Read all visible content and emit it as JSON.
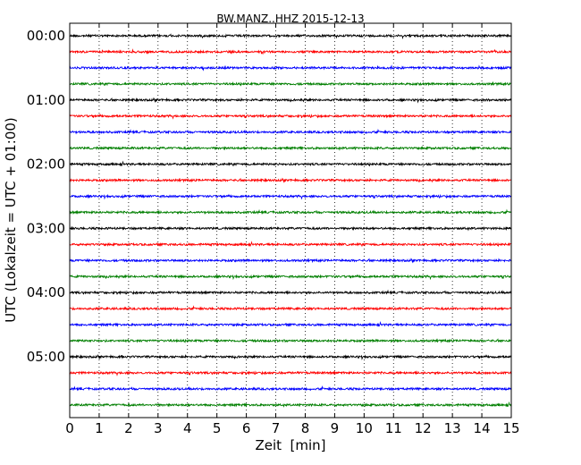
{
  "chart_data": {
    "type": "line",
    "title": "BW.MANZ..HHZ 2015-12-13",
    "xlabel": "Zeit  [min]",
    "ylabel": "UTC (Lokalzeit = UTC + 01:00)",
    "xlim": [
      0,
      15
    ],
    "x_ticks": [
      "0",
      "1",
      "2",
      "3",
      "4",
      "5",
      "6",
      "7",
      "8",
      "9",
      "10",
      "11",
      "12",
      "13",
      "14",
      "15"
    ],
    "y_tick_labels": [
      "00:00",
      "01:00",
      "02:00",
      "03:00",
      "04:00",
      "05:00"
    ],
    "grid": "vertical dotted lines at each minute",
    "trace_interval_minutes": 15,
    "series_colors": [
      "#000000",
      "#ff0000",
      "#0000ff",
      "#007f00"
    ],
    "series": [
      {
        "start": "00:00",
        "color": "#000000"
      },
      {
        "start": "00:15",
        "color": "#ff0000"
      },
      {
        "start": "00:30",
        "color": "#0000ff"
      },
      {
        "start": "00:45",
        "color": "#007f00"
      },
      {
        "start": "01:00",
        "color": "#000000"
      },
      {
        "start": "01:15",
        "color": "#ff0000"
      },
      {
        "start": "01:30",
        "color": "#0000ff"
      },
      {
        "start": "01:45",
        "color": "#007f00"
      },
      {
        "start": "02:00",
        "color": "#000000"
      },
      {
        "start": "02:15",
        "color": "#ff0000"
      },
      {
        "start": "02:30",
        "color": "#0000ff"
      },
      {
        "start": "02:45",
        "color": "#007f00"
      },
      {
        "start": "03:00",
        "color": "#000000"
      },
      {
        "start": "03:15",
        "color": "#ff0000"
      },
      {
        "start": "03:30",
        "color": "#0000ff"
      },
      {
        "start": "03:45",
        "color": "#007f00"
      },
      {
        "start": "04:00",
        "color": "#000000"
      },
      {
        "start": "04:15",
        "color": "#ff0000"
      },
      {
        "start": "04:30",
        "color": "#0000ff"
      },
      {
        "start": "04:45",
        "color": "#007f00"
      },
      {
        "start": "05:00",
        "color": "#000000"
      },
      {
        "start": "05:15",
        "color": "#ff0000"
      },
      {
        "start": "05:30",
        "color": "#0000ff"
      },
      {
        "start": "05:45",
        "color": "#007f00"
      }
    ]
  }
}
